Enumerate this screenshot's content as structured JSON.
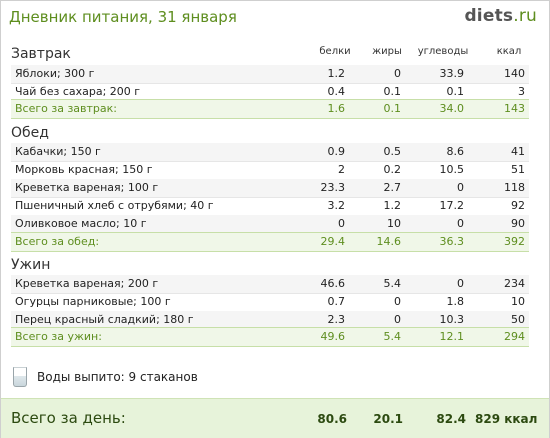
{
  "header": {
    "title": "Дневник питания, 31 января",
    "logo_main": "diets",
    "logo_suffix": ".ru"
  },
  "columns": {
    "protein": "белки",
    "fat": "жиры",
    "carbs": "углеводы",
    "kcal": "ккал"
  },
  "meals": {
    "breakfast": {
      "title": "Завтрак",
      "items": [
        {
          "name": "Яблоки; 300 г",
          "protein": "1.2",
          "fat": "0",
          "carbs": "33.9",
          "kcal": "140"
        },
        {
          "name": "Чай без сахара; 200 г",
          "protein": "0.4",
          "fat": "0.1",
          "carbs": "0.1",
          "kcal": "3"
        }
      ],
      "total": {
        "name": "Всего за завтрак:",
        "protein": "1.6",
        "fat": "0.1",
        "carbs": "34.0",
        "kcal": "143"
      }
    },
    "lunch": {
      "title": "Обед",
      "items": [
        {
          "name": "Кабачки; 150 г",
          "protein": "0.9",
          "fat": "0.5",
          "carbs": "8.6",
          "kcal": "41"
        },
        {
          "name": "Морковь красная; 150 г",
          "protein": "2",
          "fat": "0.2",
          "carbs": "10.5",
          "kcal": "51"
        },
        {
          "name": "Креветка вареная; 100 г",
          "protein": "23.3",
          "fat": "2.7",
          "carbs": "0",
          "kcal": "118"
        },
        {
          "name": "Пшеничный хлеб с отрубями; 40 г",
          "protein": "3.2",
          "fat": "1.2",
          "carbs": "17.2",
          "kcal": "92"
        },
        {
          "name": "Оливковое масло; 10 г",
          "protein": "0",
          "fat": "10",
          "carbs": "0",
          "kcal": "90"
        }
      ],
      "total": {
        "name": "Всего за обед:",
        "protein": "29.4",
        "fat": "14.6",
        "carbs": "36.3",
        "kcal": "392"
      }
    },
    "dinner": {
      "title": "Ужин",
      "items": [
        {
          "name": "Креветка вареная; 200 г",
          "protein": "46.6",
          "fat": "5.4",
          "carbs": "0",
          "kcal": "234"
        },
        {
          "name": "Огурцы парниковые; 100 г",
          "protein": "0.7",
          "fat": "0",
          "carbs": "1.8",
          "kcal": "10"
        },
        {
          "name": "Перец красный сладкий; 180 г",
          "protein": "2.3",
          "fat": "0",
          "carbs": "10.3",
          "kcal": "50"
        }
      ],
      "total": {
        "name": "Всего за ужин:",
        "protein": "49.6",
        "fat": "5.4",
        "carbs": "12.1",
        "kcal": "294"
      }
    }
  },
  "water": {
    "icon": "water-glass-icon",
    "text": "Воды выпито: 9 стаканов"
  },
  "day_total": {
    "label": "Всего за день:",
    "protein": "80.6",
    "fat": "20.1",
    "carbs": "82.4",
    "kcal": "829 ккал"
  }
}
